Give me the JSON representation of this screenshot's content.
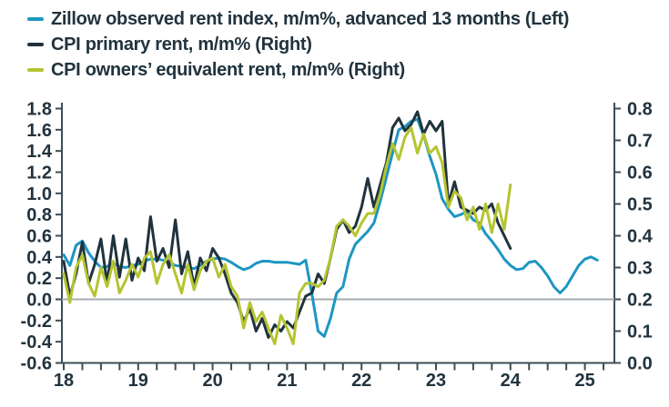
{
  "legend": {
    "items": [
      {
        "id": "zillow",
        "label": "Zillow observed rent index, m/m%, advanced 13 months (Left)",
        "color": "#1d96c3"
      },
      {
        "id": "cpi-rent",
        "label": "CPI primary rent, m/m% (Right)",
        "color": "#20333d"
      },
      {
        "id": "cpi-oer",
        "label": "CPI owners’ equivalent rent, m/m% (Right)",
        "color": "#b5c431"
      }
    ]
  },
  "chart_data": {
    "type": "line",
    "title": "",
    "grid": false,
    "legend_position": "top-left",
    "x_axis": {
      "labels": [
        "18",
        "19",
        "20",
        "21",
        "22",
        "23",
        "24",
        "25"
      ],
      "start_year": 2018,
      "minor_ticks_per_year": 4
    },
    "left_axis": {
      "min": -0.6,
      "max": 1.8,
      "step": 0.2,
      "tick_labels": [
        "1.8",
        "1.6",
        "1.4",
        "1.2",
        "1.0",
        "0.8",
        "0.6",
        "0.4",
        "0.2",
        "0.0",
        "-0.2",
        "-0.4",
        "-0.6"
      ]
    },
    "right_axis": {
      "min": 0.0,
      "max": 0.8,
      "step": 0.1,
      "tick_labels": [
        "0.8",
        "0.7",
        "0.6",
        "0.5",
        "0.4",
        "0.3",
        "0.2",
        "0.1",
        "0.0"
      ]
    },
    "zero_line": {
      "left_value": 0.0,
      "right_value": 0.2,
      "color": "#a6adb2"
    },
    "series": [
      {
        "name": "Zillow observed rent index, m/m%, advanced 13 months",
        "axis": "left",
        "color": "#1d96c3",
        "frequency": "monthly",
        "start": "2018-01",
        "values": [
          0.42,
          0.32,
          0.51,
          0.55,
          0.44,
          0.36,
          0.3,
          0.31,
          0.34,
          0.31,
          0.3,
          0.32,
          0.33,
          0.36,
          0.38,
          0.38,
          0.37,
          0.35,
          0.32,
          0.31,
          0.3,
          0.29,
          0.32,
          0.36,
          0.38,
          0.39,
          0.38,
          0.35,
          0.31,
          0.28,
          0.3,
          0.34,
          0.36,
          0.36,
          0.35,
          0.35,
          0.35,
          0.34,
          0.33,
          0.37,
          0.05,
          -0.3,
          -0.35,
          -0.18,
          0.06,
          0.12,
          0.38,
          0.52,
          0.58,
          0.64,
          0.72,
          0.92,
          1.15,
          1.38,
          1.6,
          1.63,
          1.68,
          1.7,
          1.55,
          1.35,
          1.18,
          0.95,
          0.85,
          0.78,
          0.8,
          0.83,
          0.75,
          0.72,
          0.62,
          0.55,
          0.47,
          0.38,
          0.32,
          0.28,
          0.29,
          0.35,
          0.36,
          0.3,
          0.22,
          0.12,
          0.06,
          0.12,
          0.22,
          0.32,
          0.38,
          0.4,
          0.37
        ]
      },
      {
        "name": "CPI primary rent, m/m%",
        "axis": "right",
        "color": "#20333d",
        "frequency": "monthly",
        "start": "2018-01",
        "values": [
          0.32,
          0.21,
          0.28,
          0.38,
          0.25,
          0.31,
          0.39,
          0.25,
          0.4,
          0.27,
          0.39,
          0.26,
          0.33,
          0.29,
          0.46,
          0.32,
          0.36,
          0.3,
          0.45,
          0.28,
          0.35,
          0.24,
          0.33,
          0.29,
          0.36,
          0.33,
          0.28,
          0.22,
          0.19,
          0.13,
          0.17,
          0.1,
          0.14,
          0.08,
          0.12,
          0.1,
          0.13,
          0.11,
          0.16,
          0.21,
          0.22,
          0.28,
          0.25,
          0.33,
          0.42,
          0.45,
          0.41,
          0.43,
          0.49,
          0.58,
          0.49,
          0.56,
          0.63,
          0.74,
          0.77,
          0.73,
          0.75,
          0.79,
          0.72,
          0.76,
          0.73,
          0.76,
          0.5,
          0.57,
          0.49,
          0.48,
          0.47,
          0.49,
          0.48,
          0.5,
          0.44,
          0.4,
          0.36
        ]
      },
      {
        "name": "CPI owners’ equivalent rent, m/m%",
        "axis": "right",
        "color": "#b5c431",
        "frequency": "monthly",
        "start": "2018-01",
        "values": [
          0.28,
          0.19,
          0.3,
          0.34,
          0.25,
          0.21,
          0.3,
          0.24,
          0.32,
          0.22,
          0.26,
          0.31,
          0.27,
          0.33,
          0.35,
          0.25,
          0.31,
          0.34,
          0.28,
          0.22,
          0.31,
          0.23,
          0.29,
          0.32,
          0.33,
          0.27,
          0.31,
          0.24,
          0.21,
          0.11,
          0.19,
          0.13,
          0.16,
          0.11,
          0.06,
          0.15,
          0.11,
          0.06,
          0.22,
          0.25,
          0.25,
          0.24,
          0.26,
          0.33,
          0.43,
          0.45,
          0.43,
          0.4,
          0.44,
          0.47,
          0.47,
          0.53,
          0.62,
          0.69,
          0.64,
          0.71,
          0.74,
          0.66,
          0.72,
          0.66,
          0.68,
          0.63,
          0.49,
          0.54,
          0.52,
          0.45,
          0.49,
          0.42,
          0.5,
          0.41,
          0.5,
          0.42,
          0.56
        ]
      }
    ]
  }
}
